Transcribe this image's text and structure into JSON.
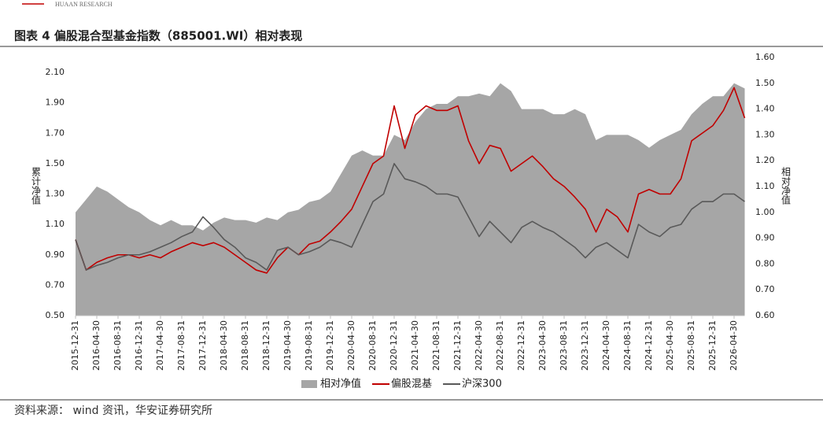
{
  "header": "HUAAN RESEARCH",
  "source": "资料来源：  wind 资讯，华安证券研究所",
  "chart_data": {
    "type": "combo",
    "title": "图表 4 偏股混合型基金指数（885001.WI）相对表现",
    "ylabel": "累计净值",
    "y2label": "相对净值",
    "categories": [
      "2015-12-31",
      null,
      "2016-04-30",
      null,
      "2016-08-31",
      null,
      "2016-12-31",
      null,
      "2017-04-30",
      null,
      "2017-08-31",
      null,
      "2017-12-31",
      null,
      "2018-04-30",
      null,
      "2018-08-31",
      null,
      "2018-12-31",
      null,
      "2019-04-30",
      null,
      "2019-08-31",
      null,
      "2019-12-31",
      null,
      "2020-04-30",
      null,
      "2020-08-31",
      null,
      "2020-12-31",
      null,
      "2021-04-30",
      null,
      "2021-08-31",
      null,
      "2021-12-31",
      null,
      "2022-04-30",
      null,
      "2022-08-31",
      null,
      "2022-12-31",
      null,
      "2023-04-30",
      null,
      "2023-08-31",
      null,
      "2023-12-31",
      null,
      "2024-04-30",
      null,
      "2024-08-31",
      null,
      "2024-12-31",
      null,
      "2025-04-30",
      null,
      "2025-08-31",
      null,
      "2025-12-31",
      null,
      "2026-04-30",
      null
    ],
    "ylim": [
      0.5,
      2.1
    ],
    "yticks": [
      {
        "value": 0.5,
        "label": "0.50"
      },
      {
        "value": 0.7,
        "label": "0.70"
      },
      {
        "value": 0.9,
        "label": "0.90"
      },
      {
        "value": 1.1,
        "label": "1.10"
      },
      {
        "value": 1.3,
        "label": "1.30"
      },
      {
        "value": 1.5,
        "label": "1.50"
      },
      {
        "value": 1.7,
        "label": "1.70"
      },
      {
        "value": 1.9,
        "label": "1.90"
      },
      {
        "value": 2.1,
        "label": "2.10"
      }
    ],
    "y2lim": [
      0.6,
      1.6
    ],
    "y2ticks": [
      {
        "value": 0.6,
        "label": "0.60"
      },
      {
        "value": 0.7,
        "label": "0.70"
      },
      {
        "value": 0.8,
        "label": "0.80"
      },
      {
        "value": 0.9,
        "label": "0.90"
      },
      {
        "value": 1.0,
        "label": "1.00"
      },
      {
        "value": 1.1,
        "label": "1.10"
      },
      {
        "value": 1.2,
        "label": "1.20"
      },
      {
        "value": 1.3,
        "label": "1.30"
      },
      {
        "value": 1.4,
        "label": "1.40"
      },
      {
        "value": 1.5,
        "label": "1.50"
      },
      {
        "value": 1.6,
        "label": "1.60"
      }
    ],
    "series": [
      {
        "name": "相对净值",
        "type": "area",
        "axis": "y2",
        "color": "#a6a6a6",
        "values": [
          1.0,
          1.05,
          1.1,
          1.08,
          1.05,
          1.02,
          1.0,
          0.97,
          0.95,
          0.97,
          0.95,
          0.95,
          0.93,
          0.96,
          0.98,
          0.97,
          0.97,
          0.96,
          0.98,
          0.97,
          1.0,
          1.01,
          1.04,
          1.05,
          1.08,
          1.15,
          1.22,
          1.24,
          1.22,
          1.22,
          1.3,
          1.28,
          1.35,
          1.4,
          1.42,
          1.42,
          1.45,
          1.45,
          1.46,
          1.45,
          1.5,
          1.47,
          1.4,
          1.4,
          1.4,
          1.38,
          1.38,
          1.4,
          1.38,
          1.28,
          1.3,
          1.3,
          1.3,
          1.28,
          1.25,
          1.28,
          1.3,
          1.32,
          1.38,
          1.42,
          1.45,
          1.45,
          1.5,
          1.48
        ]
      },
      {
        "name": "偏股混基",
        "type": "line",
        "color": "#c00000",
        "values": [
          1.0,
          0.8,
          0.85,
          0.88,
          0.9,
          0.9,
          0.88,
          0.9,
          0.88,
          0.92,
          0.95,
          0.98,
          0.96,
          0.98,
          0.95,
          0.9,
          0.85,
          0.8,
          0.78,
          0.88,
          0.95,
          0.9,
          0.97,
          0.99,
          1.05,
          1.12,
          1.2,
          1.35,
          1.5,
          1.55,
          1.88,
          1.6,
          1.82,
          1.88,
          1.85,
          1.85,
          1.88,
          1.65,
          1.5,
          1.62,
          1.6,
          1.45,
          1.5,
          1.55,
          1.48,
          1.4,
          1.35,
          1.28,
          1.2,
          1.05,
          1.2,
          1.15,
          1.05,
          1.3,
          1.33,
          1.3,
          1.3,
          1.4,
          1.65,
          1.7,
          1.75,
          1.85,
          2.0,
          1.8
        ]
      },
      {
        "name": "沪深300",
        "type": "line",
        "color": "#595959",
        "values": [
          1.0,
          0.8,
          0.83,
          0.85,
          0.88,
          0.9,
          0.9,
          0.92,
          0.95,
          0.98,
          1.02,
          1.05,
          1.15,
          1.08,
          1.0,
          0.95,
          0.88,
          0.85,
          0.8,
          0.93,
          0.95,
          0.9,
          0.92,
          0.95,
          1.0,
          0.98,
          0.95,
          1.1,
          1.25,
          1.3,
          1.5,
          1.4,
          1.38,
          1.35,
          1.3,
          1.3,
          1.28,
          1.15,
          1.02,
          1.12,
          1.05,
          0.98,
          1.08,
          1.12,
          1.08,
          1.05,
          1.0,
          0.95,
          0.88,
          0.95,
          0.98,
          0.93,
          0.88,
          1.1,
          1.05,
          1.02,
          1.08,
          1.1,
          1.2,
          1.25,
          1.25,
          1.3,
          1.3,
          1.25
        ]
      }
    ],
    "grid": false,
    "legend": "bottom"
  }
}
